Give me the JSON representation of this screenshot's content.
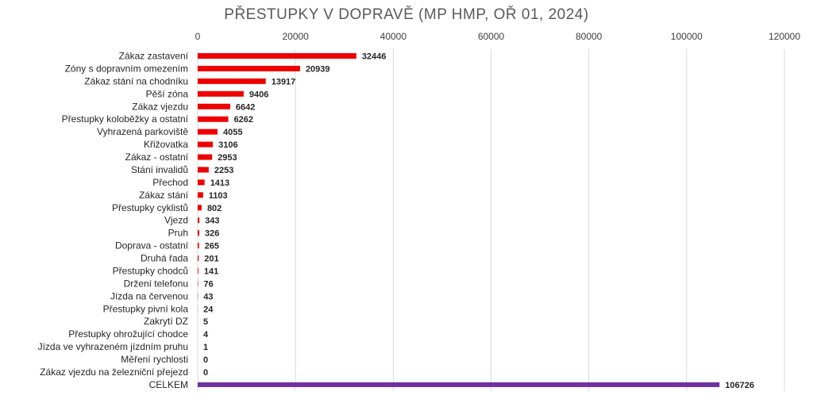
{
  "chart_data": {
    "type": "bar",
    "orientation": "horizontal",
    "title": "PŘESTUPKY V DOPRAVĚ (MP HMP, OŘ 01, 2024)",
    "xlim": [
      0,
      120000
    ],
    "x_ticks": [
      "0",
      "20000",
      "40000",
      "60000",
      "80000",
      "100000",
      "120000"
    ],
    "x_tick_values": [
      0,
      20000,
      40000,
      60000,
      80000,
      100000,
      120000
    ],
    "axis_position": "top",
    "grid": true,
    "legend": "none",
    "colors": {
      "bar": "#ee0000",
      "total_bar": "#7030a0",
      "grid": "#d9d9d9"
    },
    "categories": [
      "Zákaz zastavení",
      "Zóny s dopravním omezením",
      "Zákaz stání na chodníku",
      "Pěší zóna",
      "Zákaz vjezdu",
      "Přestupky koloběžky a ostatní",
      "Vyhrazená parkoviště",
      "Křižovatka",
      "Zákaz - ostatní",
      "Stání invalidů",
      "Přechod",
      "Zákaz stání",
      "Přestupky cyklistů",
      "Vjezd",
      "Pruh",
      "Doprava - ostatní",
      "Druhá řada",
      "Přestupky chodců",
      "Držení telefonu",
      "Jízda na červenou",
      "Přestupky pivní kola",
      "Zakrytí DZ",
      "Přestupky ohrožující chodce",
      "Jízda ve vyhrazeném jízdním pruhu",
      "Měření rychlosti",
      "Zákaz vjezdu na železniční přejezd",
      "CELKEM"
    ],
    "values": [
      32446,
      20939,
      13917,
      9406,
      6642,
      6262,
      4055,
      3106,
      2953,
      2253,
      1413,
      1103,
      802,
      343,
      326,
      265,
      201,
      141,
      76,
      43,
      24,
      5,
      4,
      1,
      0,
      0,
      106726
    ],
    "value_labels": [
      "32446",
      "20939",
      "13917",
      "9406",
      "6642",
      "6262",
      "4055",
      "3106",
      "2953",
      "2253",
      "1413",
      "1103",
      "802",
      "343",
      "326",
      "265",
      "201",
      "141",
      "76",
      "43",
      "24",
      "5",
      "4",
      "1",
      "0",
      "0",
      "106726"
    ]
  }
}
